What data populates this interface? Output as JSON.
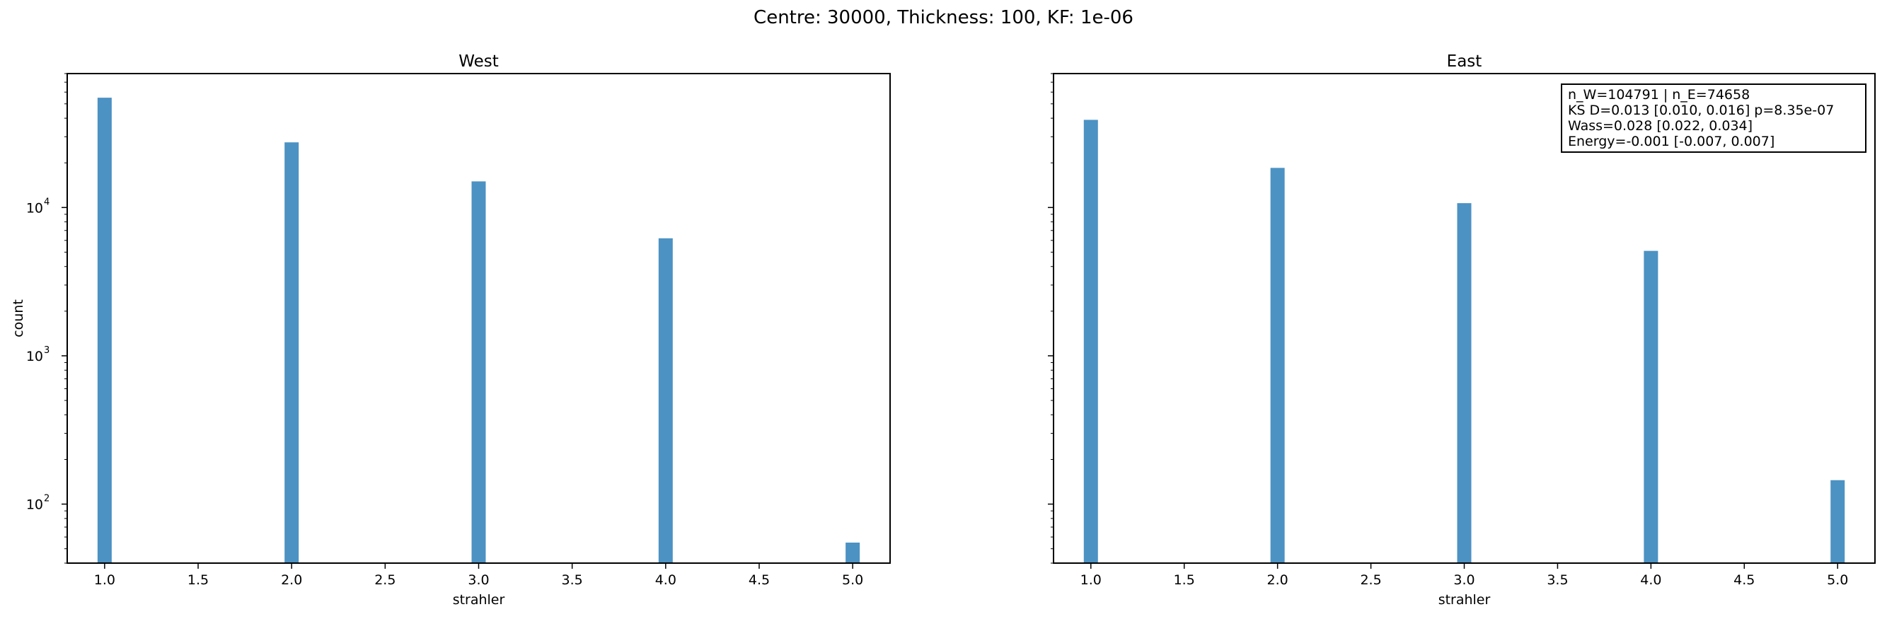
{
  "figure": {
    "suptitle": "Centre: 30000, Thickness: 100, KF: 1e-06"
  },
  "stats": {
    "line1": "n_W=104791 | n_E=74658",
    "line2": "KS D=0.013 [0.010, 0.016]  p=8.35e-07",
    "line3": "Wass=0.028 [0.022, 0.034]",
    "line4": "Energy=-0.001 [-0.007, 0.007]"
  },
  "colors": {
    "bar": "#4c92c3"
  },
  "chart_data": [
    {
      "type": "bar",
      "title": "West",
      "xlabel": "strahler",
      "ylabel": "count",
      "yscale": "log",
      "xlim": [
        0.8,
        5.2
      ],
      "ylim": [
        40,
        80000
      ],
      "xticks": [
        "1.0",
        "1.5",
        "2.0",
        "2.5",
        "3.0",
        "3.5",
        "4.0",
        "4.5",
        "5.0"
      ],
      "yticks": [
        {
          "base": "10",
          "exp": "2",
          "value": 100
        },
        {
          "base": "10",
          "exp": "3",
          "value": 1000
        },
        {
          "base": "10",
          "exp": "4",
          "value": 10000
        }
      ],
      "x": [
        1,
        2,
        3,
        4,
        5
      ],
      "values": [
        55000,
        27500,
        15000,
        6200,
        55
      ]
    },
    {
      "type": "bar",
      "title": "East",
      "xlabel": "strahler",
      "ylabel": "",
      "yscale": "log",
      "xlim": [
        0.8,
        5.2
      ],
      "ylim": [
        40,
        80000
      ],
      "xticks": [
        "1.0",
        "1.5",
        "2.0",
        "2.5",
        "3.0",
        "3.5",
        "4.0",
        "4.5",
        "5.0"
      ],
      "yticks": [],
      "x": [
        1,
        2,
        3,
        4,
        5
      ],
      "values": [
        39000,
        18500,
        10700,
        5100,
        145
      ]
    }
  ]
}
